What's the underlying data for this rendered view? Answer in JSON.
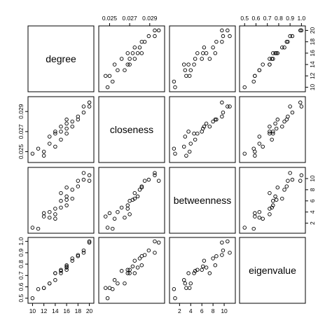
{
  "chart_data": {
    "type": "scatter-matrix",
    "variables": [
      "degree",
      "closeness",
      "betweenness",
      "eigenvalue"
    ],
    "ranges": {
      "degree": [
        9.7,
        20.3
      ],
      "closeness": [
        0.0242,
        0.0302
      ],
      "betweenness": [
        0.7,
        11.5
      ],
      "eigenvalue": [
        0.48,
        1.01
      ]
    },
    "ticks": {
      "degree": [
        "10",
        "12",
        "14",
        "16",
        "18",
        "20"
      ],
      "closeness": [
        "0.025",
        "0.027",
        "0.029"
      ],
      "betweenness": [
        "2",
        "4",
        "6",
        "8",
        "10"
      ],
      "eigenvalue": [
        "0.5",
        "0.6",
        "0.7",
        "0.8",
        "0.9",
        "1.0"
      ]
    },
    "tick_values": {
      "degree": [
        10,
        12,
        14,
        16,
        18,
        20
      ],
      "closeness": [
        0.025,
        0.027,
        0.029
      ],
      "betweenness": [
        2,
        4,
        6,
        8,
        10
      ],
      "eigenvalue": [
        0.5,
        0.6,
        0.7,
        0.8,
        0.9,
        1.0
      ]
    },
    "points": [
      {
        "degree": 10,
        "closeness": 0.0248,
        "betweenness": 1.2,
        "eigenvalue": 0.5
      },
      {
        "degree": 11,
        "closeness": 0.0253,
        "betweenness": 1.0,
        "eigenvalue": 0.58
      },
      {
        "degree": 12,
        "closeness": 0.0246,
        "betweenness": 3.2,
        "eigenvalue": 0.59
      },
      {
        "degree": 12,
        "closeness": 0.025,
        "betweenness": 3.8,
        "eigenvalue": 0.59
      },
      {
        "degree": 13,
        "closeness": 0.0265,
        "betweenness": 3.0,
        "eigenvalue": 0.63
      },
      {
        "degree": 13,
        "closeness": 0.0258,
        "betweenness": 4.0,
        "eigenvalue": 0.63
      },
      {
        "degree": 14,
        "closeness": 0.0255,
        "betweenness": 2.8,
        "eigenvalue": 0.66
      },
      {
        "degree": 14,
        "closeness": 0.0268,
        "betweenness": 4.6,
        "eigenvalue": 0.72
      },
      {
        "degree": 14,
        "closeness": 0.027,
        "betweenness": 3.6,
        "eigenvalue": 0.72
      },
      {
        "degree": 15,
        "closeness": 0.0262,
        "betweenness": 4.8,
        "eigenvalue": 0.74
      },
      {
        "degree": 15,
        "closeness": 0.027,
        "betweenness": 6.0,
        "eigenvalue": 0.75
      },
      {
        "degree": 15,
        "closeness": 0.0275,
        "betweenness": 7.4,
        "eigenvalue": 0.72
      },
      {
        "degree": 16,
        "closeness": 0.0268,
        "betweenness": 5.2,
        "eigenvalue": 0.75
      },
      {
        "degree": 16,
        "closeness": 0.0278,
        "betweenness": 6.8,
        "eigenvalue": 0.77
      },
      {
        "degree": 16,
        "closeness": 0.0273,
        "betweenness": 6.2,
        "eigenvalue": 0.78
      },
      {
        "degree": 16,
        "closeness": 0.0282,
        "betweenness": 8.4,
        "eigenvalue": 0.79
      },
      {
        "degree": 17,
        "closeness": 0.028,
        "betweenness": 8.0,
        "eigenvalue": 0.85
      },
      {
        "degree": 17,
        "closeness": 0.0275,
        "betweenness": 6.4,
        "eigenvalue": 0.83
      },
      {
        "degree": 18,
        "closeness": 0.0285,
        "betweenness": 9.6,
        "eigenvalue": 0.88
      },
      {
        "degree": 18,
        "closeness": 0.0282,
        "betweenness": 8.6,
        "eigenvalue": 0.87
      },
      {
        "degree": 19,
        "closeness": 0.0289,
        "betweenness": 9.8,
        "eigenvalue": 0.92
      },
      {
        "degree": 19,
        "closeness": 0.0295,
        "betweenness": 11.0,
        "eigenvalue": 0.9
      },
      {
        "degree": 20,
        "closeness": 0.0295,
        "betweenness": 10.6,
        "eigenvalue": 1.0
      },
      {
        "degree": 20,
        "closeness": 0.0299,
        "betweenness": 9.6,
        "eigenvalue": 0.99
      }
    ],
    "grid": false,
    "legend": "none"
  }
}
